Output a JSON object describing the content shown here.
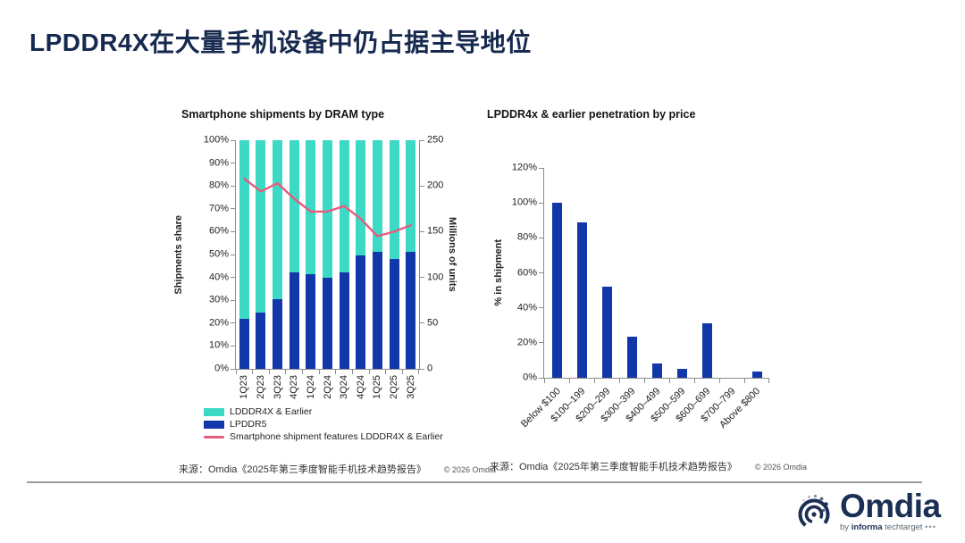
{
  "page": {
    "title": "LPDDR4X在大量手机设备中仍占据主导地位",
    "accent_navy": "#16294E",
    "background": "#FFFFFF"
  },
  "chart_data": [
    {
      "type": "stacked-bar+line",
      "title": "Smartphone shipments by DRAM type",
      "categories": [
        "1Q23",
        "2Q23",
        "3Q23",
        "4Q23",
        "1Q24",
        "2Q24",
        "3Q24",
        "4Q24",
        "1Q25",
        "2Q25",
        "3Q25"
      ],
      "series": [
        {
          "name": "LDDDR4X & Earlier",
          "type": "bar",
          "color": "#3CD9C6",
          "values": [
            78,
            75.5,
            69.5,
            58,
            58.5,
            60,
            58,
            50.5,
            49,
            52,
            49
          ]
        },
        {
          "name": "LPDDR5",
          "type": "bar",
          "color": "#1237A8",
          "values": [
            22,
            24.5,
            30.5,
            42,
            41.5,
            40,
            42,
            49.5,
            51,
            48,
            51
          ]
        },
        {
          "name": "Smartphone shipment features LDDDR4X & Earlier",
          "type": "line",
          "color": "#E75C7B",
          "axis": "right",
          "values": [
            208,
            194,
            203,
            186,
            172,
            172,
            178,
            164,
            145,
            150,
            157
          ]
        }
      ],
      "axis_left": {
        "label": "Shipments share",
        "min": 0,
        "max": 100,
        "step": 10,
        "format": "percent"
      },
      "axis_right": {
        "label": "Millions of units",
        "min": 0,
        "max": 250,
        "step": 50
      },
      "grid": false,
      "legend_position": "bottom-left",
      "source": "来源：Omdia《2025年第三季度智能手机技术趋势报告》",
      "copyright": "© 2026 Omdia"
    },
    {
      "type": "bar",
      "title": "LPDDR4x & earlier penetration by price",
      "categories": [
        "Below $100",
        "$100–199",
        "$200–299",
        "$300–399",
        "$400–499",
        "$500–599",
        "$600–699",
        "$700–799",
        "Above $800"
      ],
      "values": [
        100,
        89,
        52,
        23.5,
        8,
        5,
        31,
        0,
        3.5
      ],
      "bar_color": "#1237A8",
      "axis_left": {
        "label": "% in shipment",
        "min": 0,
        "max": 120,
        "step": 20,
        "format": "percent"
      },
      "grid": false,
      "source": "来源：Omdia《2025年第三季度智能手机技术趋势报告》",
      "copyright": "© 2026 Omdia"
    }
  ],
  "logo": {
    "brand": "Omdia",
    "by": "by",
    "informa": "informa",
    "techtarget": "techtarget",
    "dots": "•••",
    "color": "#1B2F54"
  }
}
